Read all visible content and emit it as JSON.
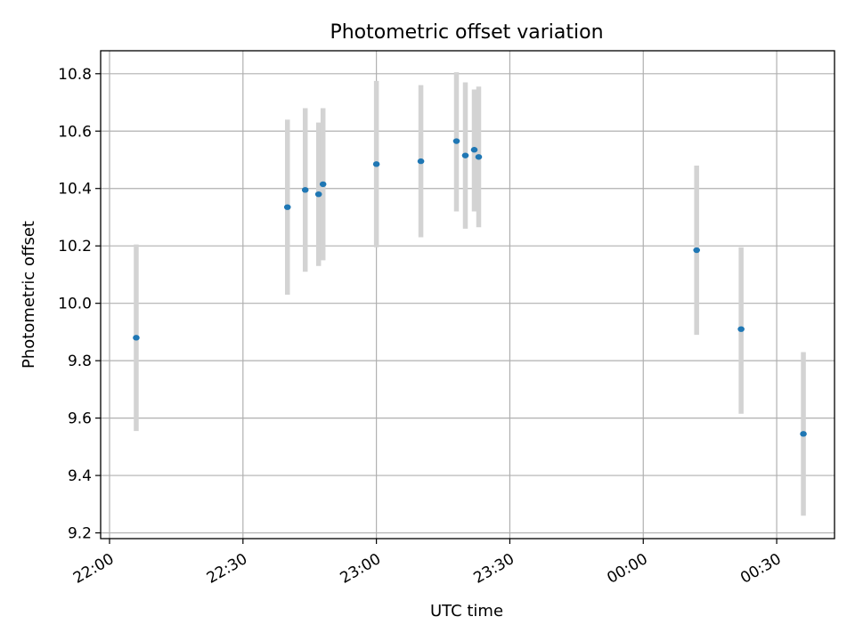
{
  "chart_data": {
    "type": "scatter",
    "title": "Photometric offset variation",
    "xlabel": "UTC time",
    "ylabel": "Photometric offset",
    "x_tick_labels": [
      "22:00",
      "22:30",
      "23:00",
      "23:30",
      "00:00",
      "00:30"
    ],
    "y_tick_labels": [
      "9.2",
      "9.4",
      "9.6",
      "9.8",
      "10.0",
      "10.2",
      "10.4",
      "10.6",
      "10.8"
    ],
    "x_ticks": [
      "22:00",
      "22:30",
      "23:00",
      "23:30",
      "00:00",
      "00:30"
    ],
    "y_ticks": [
      9.2,
      9.4,
      9.6,
      9.8,
      10.0,
      10.2,
      10.4,
      10.6,
      10.8
    ],
    "xlim": [
      "21:58",
      "00:43"
    ],
    "ylim": [
      9.18,
      10.88
    ],
    "grid": true,
    "series": [
      {
        "points": [
          {
            "x": "22:06",
            "y": 9.88,
            "err_low": 9.555,
            "err_high": 10.205
          },
          {
            "x": "22:40",
            "y": 10.335,
            "err_low": 10.03,
            "err_high": 10.64
          },
          {
            "x": "22:44",
            "y": 10.395,
            "err_low": 10.11,
            "err_high": 10.68
          },
          {
            "x": "22:47",
            "y": 10.38,
            "err_low": 10.13,
            "err_high": 10.63
          },
          {
            "x": "22:48",
            "y": 10.415,
            "err_low": 10.15,
            "err_high": 10.68
          },
          {
            "x": "23:00",
            "y": 10.485,
            "err_low": 10.195,
            "err_high": 10.775
          },
          {
            "x": "23:10",
            "y": 10.495,
            "err_low": 10.23,
            "err_high": 10.76
          },
          {
            "x": "23:18",
            "y": 10.565,
            "err_low": 10.32,
            "err_high": 10.805
          },
          {
            "x": "23:20",
            "y": 10.515,
            "err_low": 10.26,
            "err_high": 10.77
          },
          {
            "x": "23:22",
            "y": 10.535,
            "err_low": 10.32,
            "err_high": 10.745
          },
          {
            "x": "23:23",
            "y": 10.51,
            "err_low": 10.265,
            "err_high": 10.755
          },
          {
            "x": "00:12",
            "y": 10.185,
            "err_low": 9.89,
            "err_high": 10.48
          },
          {
            "x": "00:22",
            "y": 9.91,
            "err_low": 9.615,
            "err_high": 10.195
          },
          {
            "x": "00:36",
            "y": 9.545,
            "err_low": 9.26,
            "err_high": 9.83
          }
        ]
      }
    ],
    "colors": {
      "marker": "#1f77b4",
      "errorbar": "#d3d3d3",
      "grid": "#b0b0b0",
      "axes": "#000000"
    }
  }
}
